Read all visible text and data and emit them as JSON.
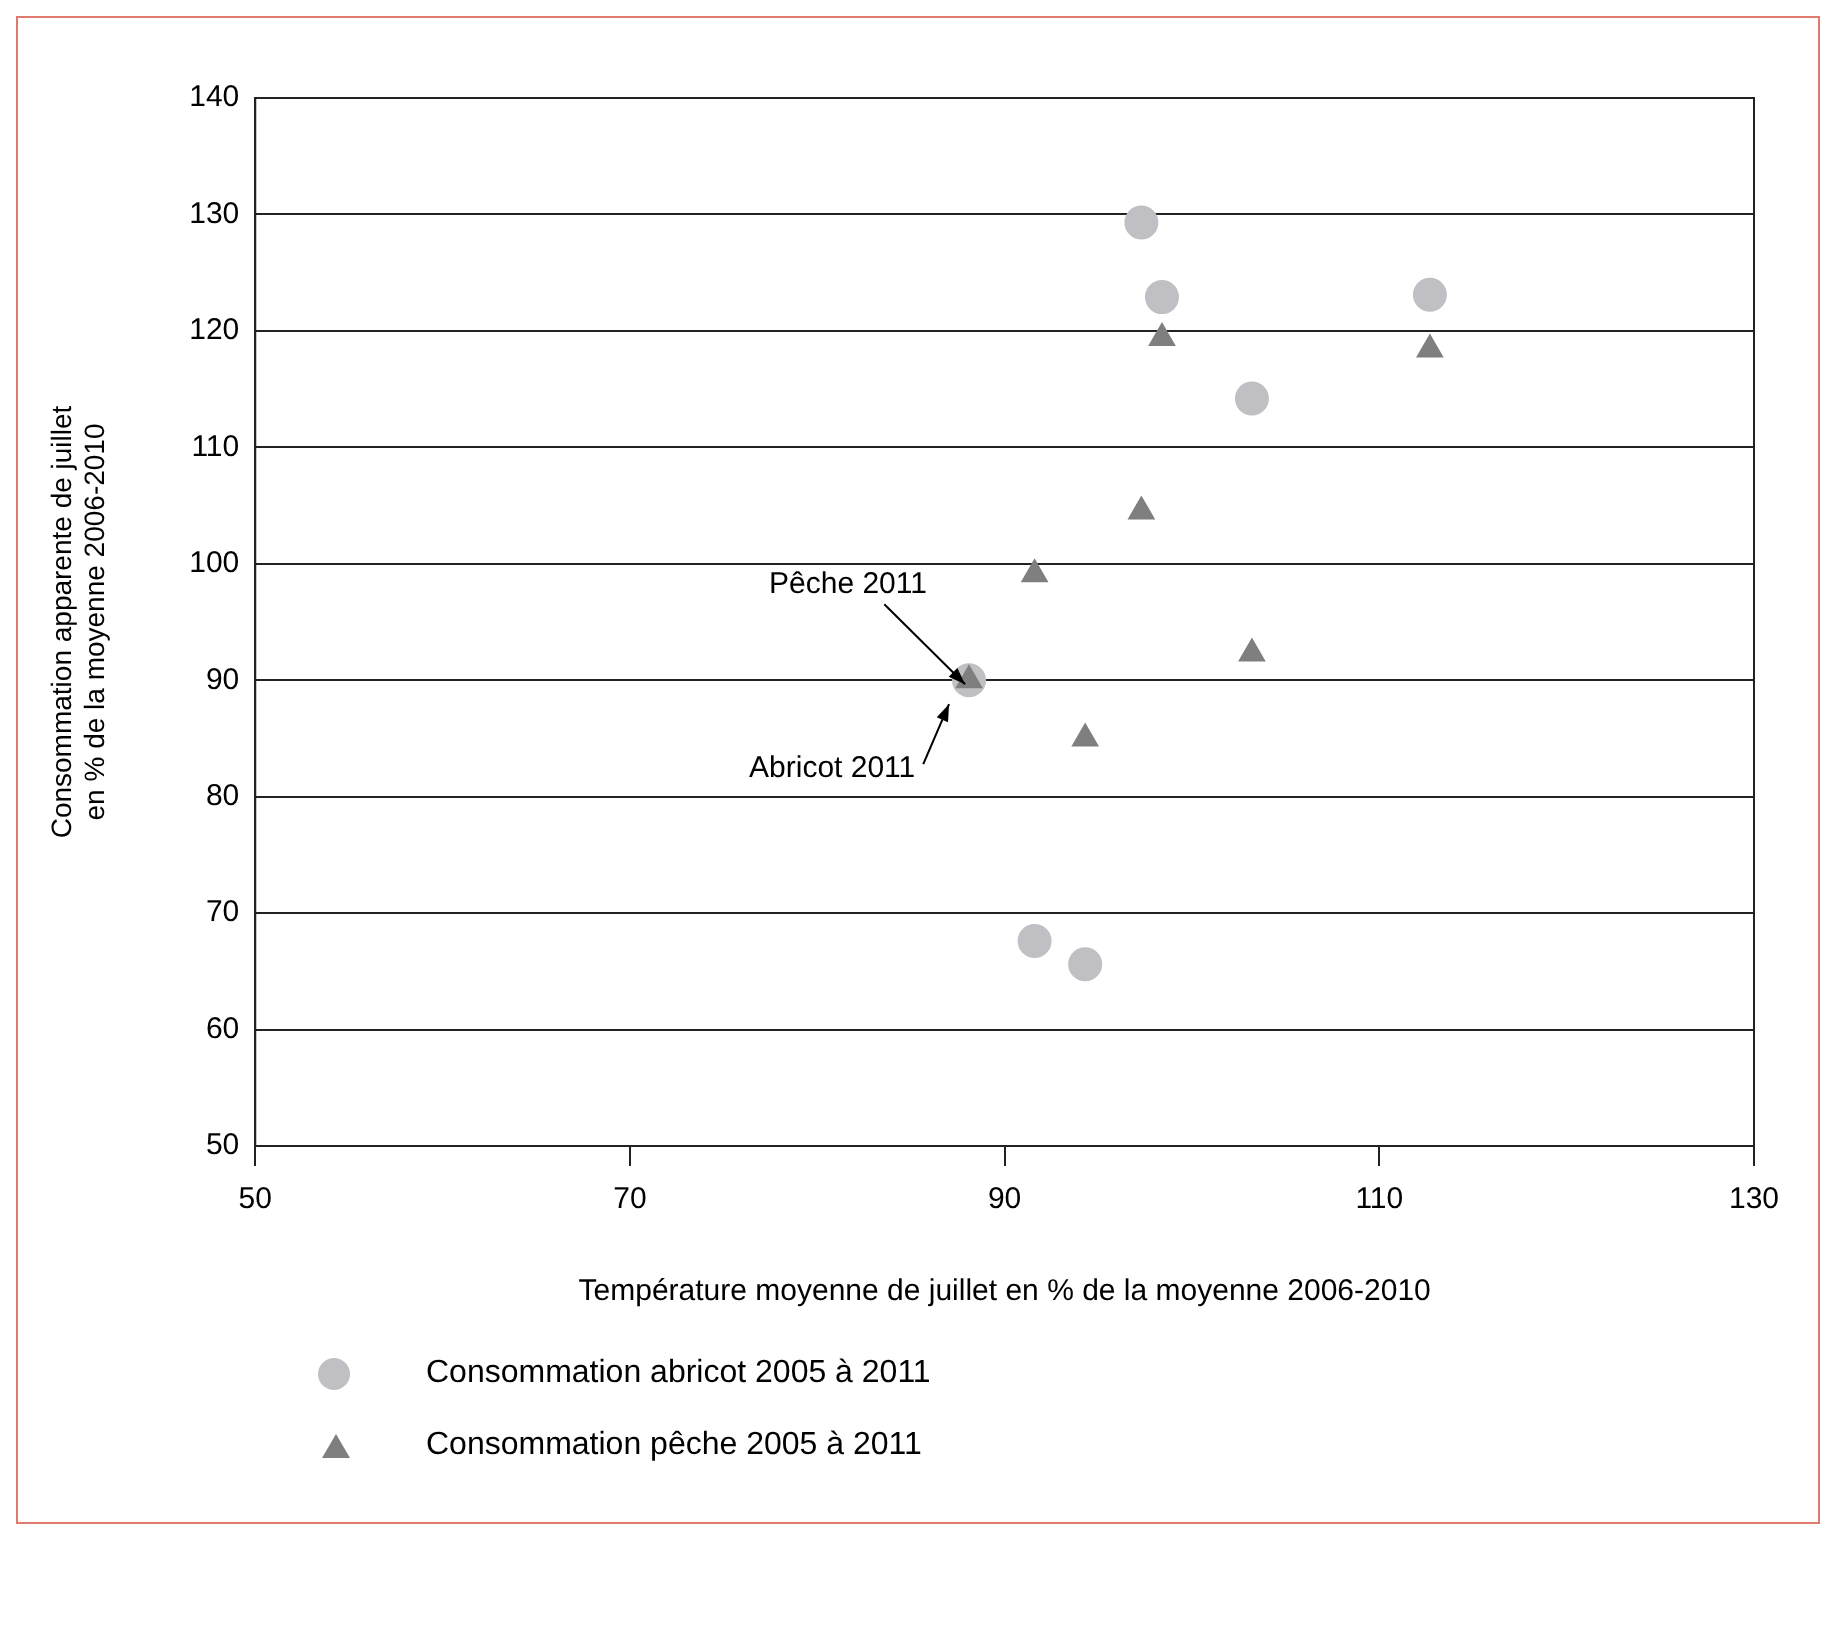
{
  "chart_data": {
    "type": "scatter",
    "xlabel": "Température moyenne de juillet en % de la moyenne 2006-2010",
    "ylabel": "Consommation apparente de juillet\nen % de la moyenne 2006-2010",
    "series": [
      {
        "name": "Consommation abricot 2005 à 2011",
        "color": "#c0c0c4",
        "marker": "circle",
        "x": [
          97.3,
          98.4,
          112.7,
          103.2,
          91.6,
          94.3,
          88.1
        ],
        "values": [
          129.3,
          122.9,
          123.1,
          114.2,
          67.6,
          65.6,
          90
        ]
      },
      {
        "name": "Consommation pêche 2005 à 2011",
        "color": "#7f7f7f",
        "marker": "triangle",
        "x": [
          98.4,
          112.7,
          97.3,
          91.6,
          103.2,
          94.3,
          88.1
        ],
        "values": [
          119.4,
          118.4,
          104.5,
          99.1,
          92.3,
          85,
          90
        ]
      }
    ],
    "xlim": [
      50,
      130
    ],
    "xticks": [
      50,
      70,
      90,
      110,
      130
    ],
    "ylim": [
      50,
      140
    ],
    "yticks": [
      50,
      60,
      70,
      80,
      90,
      100,
      110,
      120,
      130,
      140
    ],
    "grid": "y",
    "legend": "bottom left",
    "annotations": [
      {
        "text": "Pêche 2011",
        "x": 88.1,
        "y": 90
      },
      {
        "text": "Abricot 2011",
        "x": 88.1,
        "y": 90
      }
    ]
  }
}
